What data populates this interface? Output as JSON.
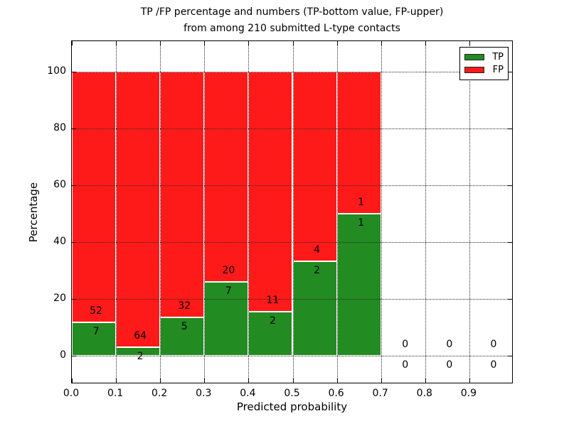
{
  "chart_data": {
    "type": "bar",
    "stacked": true,
    "title_line1": "TP /FP percentage and numbers (TP-bottom value, FP-upper)",
    "title_line2": "from among 210 submitted L-type contacts",
    "xlabel": "Predicted probability",
    "ylabel": "Percentage",
    "x_tick_labels": [
      "0.0",
      "0.1",
      "0.2",
      "0.3",
      "0.4",
      "0.5",
      "0.6",
      "0.7",
      "0.8",
      "0.9"
    ],
    "y_ticks": [
      0,
      20,
      40,
      60,
      80,
      100
    ],
    "xlim": [
      0.0,
      1.0
    ],
    "ylim": [
      -10,
      110.75
    ],
    "grid": true,
    "grid_style": "dotted",
    "bar_edge_color": "#ffffff",
    "legend_position": "upper right",
    "legend": [
      {
        "label": "TP",
        "color": "#228B22"
      },
      {
        "label": "FP",
        "color": "#FF1A1A"
      }
    ],
    "colors": {
      "tp": "#228B22",
      "fp": "#FF1A1A"
    },
    "total_contacts": 210,
    "bins": [
      {
        "range": [
          0.0,
          0.1
        ],
        "tp": 7,
        "fp": 52
      },
      {
        "range": [
          0.1,
          0.2
        ],
        "tp": 2,
        "fp": 64
      },
      {
        "range": [
          0.2,
          0.3
        ],
        "tp": 5,
        "fp": 32
      },
      {
        "range": [
          0.3,
          0.4
        ],
        "tp": 7,
        "fp": 20
      },
      {
        "range": [
          0.4,
          0.5
        ],
        "tp": 2,
        "fp": 11
      },
      {
        "range": [
          0.5,
          0.6
        ],
        "tp": 2,
        "fp": 4
      },
      {
        "range": [
          0.6,
          0.7
        ],
        "tp": 1,
        "fp": 1
      },
      {
        "range": [
          0.7,
          0.8
        ],
        "tp": 0,
        "fp": 0
      },
      {
        "range": [
          0.8,
          0.9
        ],
        "tp": 0,
        "fp": 0
      },
      {
        "range": [
          0.9,
          1.0
        ],
        "tp": 0,
        "fp": 0
      }
    ]
  }
}
